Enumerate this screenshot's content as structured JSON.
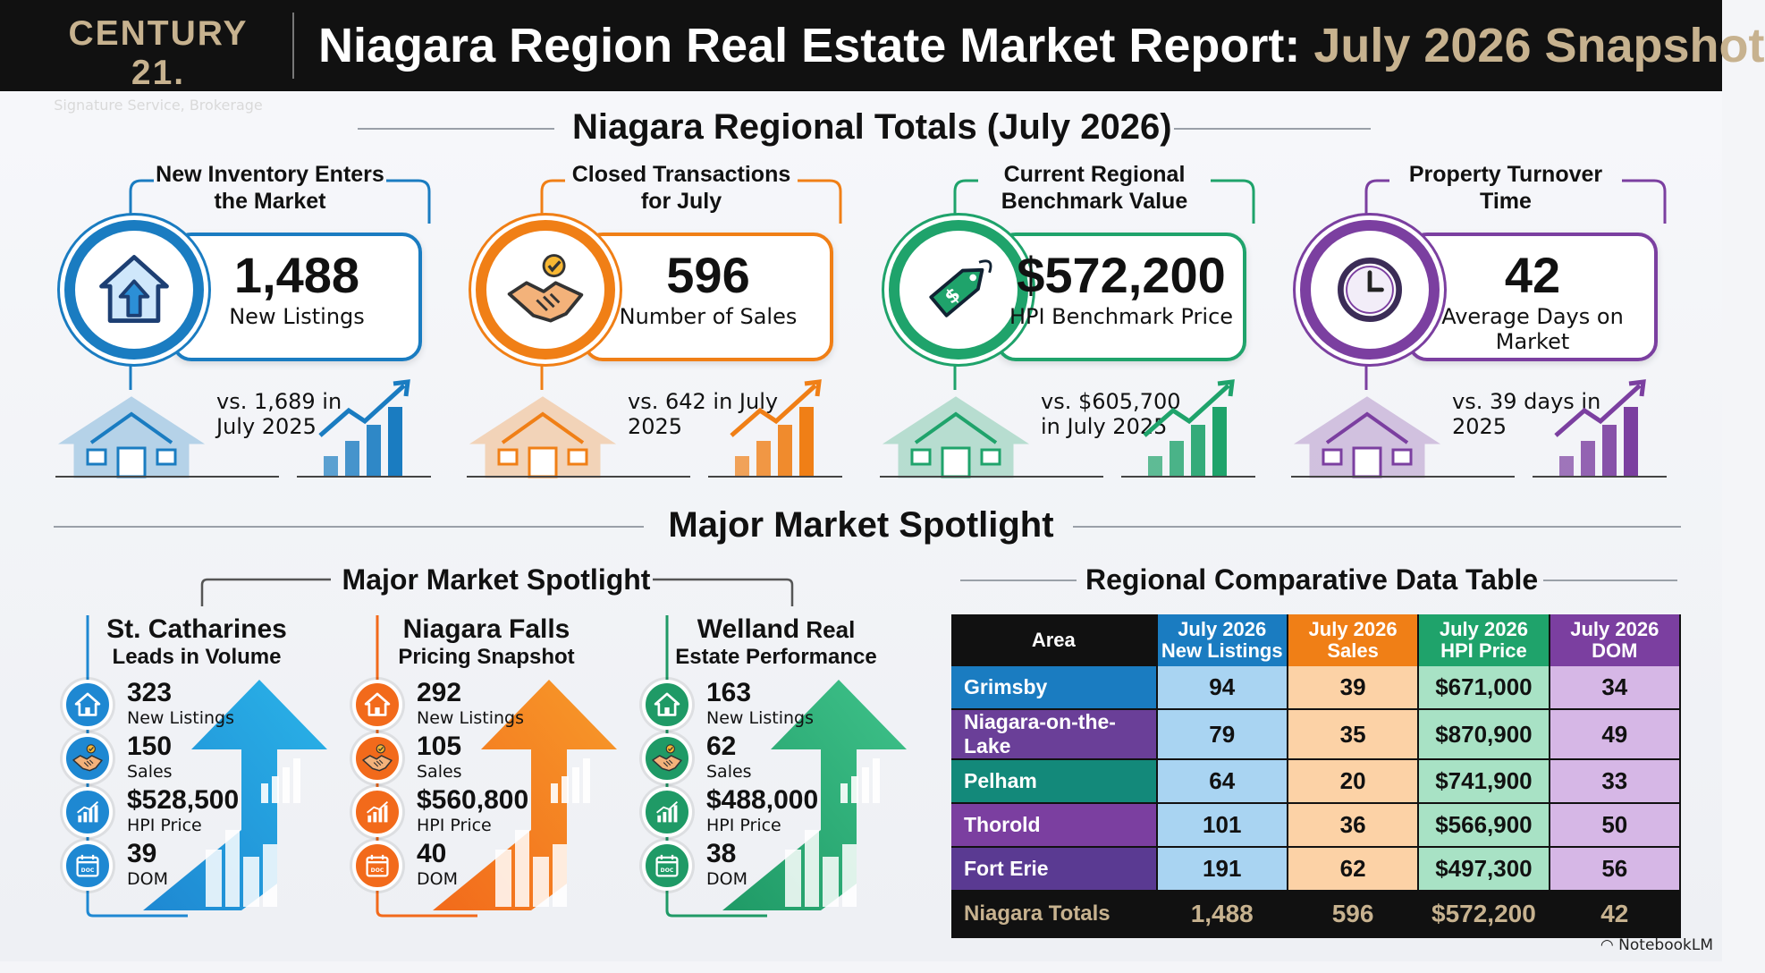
{
  "header": {
    "logo_brand": "CENTURY 21.",
    "logo_sub": "Signature Service, Brokerage",
    "title_main": "Niagara Region Real Estate Market Report: ",
    "title_highlight": "July 2026 Snapshot"
  },
  "regional": {
    "heading": "Niagara Regional Totals (July 2026)",
    "kpis": [
      {
        "label": "New Inventory Enters the Market",
        "value": "1,488",
        "sub": "New Listings",
        "compare": "vs. 1,689 in July 2025",
        "color": "#1a7cc1",
        "icon": "house-arrow-icon"
      },
      {
        "label": "Closed Transactions for July",
        "value": "596",
        "sub": "Number of Sales",
        "compare": "vs. 642 in July 2025",
        "color": "#f07f16",
        "icon": "handshake-icon"
      },
      {
        "label": "Current Regional Benchmark Value",
        "value": "$572,200",
        "sub": "HPI Benchmark Price",
        "compare": "vs. $605,700 in July 2025",
        "color": "#1fa36b",
        "icon": "price-tag-icon"
      },
      {
        "label": "Property Turnover Time",
        "value": "42",
        "sub": "Average Days on Market",
        "compare": "vs. 39 days in 2025",
        "color": "#7b3fa0",
        "icon": "clock-icon"
      }
    ]
  },
  "spotlight": {
    "heading": "Major Market Spotlight",
    "subheading": "Major Market Spotlight",
    "markets": [
      {
        "title": "St. Catharines",
        "title_suffix": "",
        "subtitle": "Leads in Volume",
        "color": "#1e88d2",
        "light": "#2ab3e8",
        "metrics": [
          {
            "value": "323",
            "label": "New Listings",
            "icon": "house-icon"
          },
          {
            "value": "150",
            "label": "Sales",
            "icon": "handshake-icon"
          },
          {
            "value": "$528,500",
            "label": "HPI Price",
            "icon": "chart-icon"
          },
          {
            "value": "39",
            "label": "DOM",
            "icon": "calendar-icon"
          }
        ]
      },
      {
        "title": "Niagara Falls",
        "title_suffix": "",
        "subtitle": "Pricing Snapshot",
        "color": "#f26a1b",
        "light": "#f79a2a",
        "metrics": [
          {
            "value": "292",
            "label": "New Listings",
            "icon": "house-icon"
          },
          {
            "value": "105",
            "label": "Sales",
            "icon": "handshake-icon"
          },
          {
            "value": "$560,800",
            "label": "HPI Price",
            "icon": "chart-icon"
          },
          {
            "value": "40",
            "label": "DOM",
            "icon": "calendar-icon"
          }
        ]
      },
      {
        "title": "Welland",
        "title_suffix": " Real",
        "subtitle": "Estate Performance",
        "color": "#1f9a66",
        "light": "#3fc28a",
        "metrics": [
          {
            "value": "163",
            "label": "New Listings",
            "icon": "house-icon"
          },
          {
            "value": "62",
            "label": "Sales",
            "icon": "handshake-icon"
          },
          {
            "value": "$488,000",
            "label": "HPI Price",
            "icon": "chart-icon"
          },
          {
            "value": "38",
            "label": "DOM",
            "icon": "calendar-icon"
          }
        ]
      }
    ]
  },
  "table": {
    "heading": "Regional Comparative Data Table",
    "headers": [
      "Area",
      "July 2026 New Listings",
      "July 2026 Sales",
      "July 2026 HPI Price",
      "July 2026 DOM"
    ],
    "header_colors": [
      "#111111",
      "#1a7cc1",
      "#f07f16",
      "#1fa36b",
      "#7b3fa0"
    ],
    "col_light": [
      "",
      "#a9d4f2",
      "#fcd2a6",
      "#a8e2c5",
      "#d6b7e6"
    ],
    "rows": [
      {
        "area": "Grimsby",
        "cells": [
          "94",
          "39",
          "$671,000",
          "34"
        ],
        "area_color": "#1a7cc1"
      },
      {
        "area": "Niagara-on-the-Lake",
        "cells": [
          "79",
          "35",
          "$870,900",
          "49"
        ],
        "area_color": "#6a3f98"
      },
      {
        "area": "Pelham",
        "cells": [
          "64",
          "20",
          "$741,900",
          "33"
        ],
        "area_color": "#13897a"
      },
      {
        "area": "Thorold",
        "cells": [
          "101",
          "36",
          "$566,900",
          "50"
        ],
        "area_color": "#7b3fa0"
      },
      {
        "area": "Fort Erie",
        "cells": [
          "191",
          "62",
          "$497,300",
          "56"
        ],
        "area_color": "#5a3a92"
      }
    ],
    "total": {
      "area": "Niagara Totals",
      "cells": [
        "1,488",
        "596",
        "$572,200",
        "42"
      ]
    }
  },
  "footer": "NotebookLM"
}
